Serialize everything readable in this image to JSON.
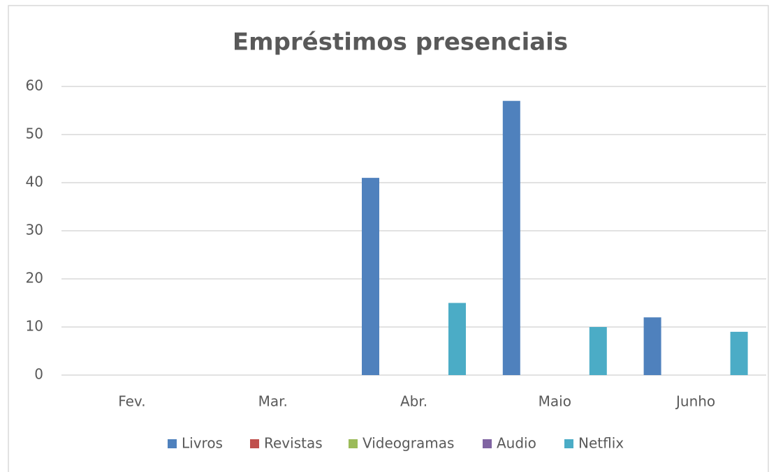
{
  "chart_data": {
    "type": "bar",
    "title": "Empréstimos presenciais",
    "categories": [
      "Fev.",
      "Mar.",
      "Abr.",
      "Maio",
      "Junho"
    ],
    "series": [
      {
        "name": "Livros",
        "color": "#4f81bd",
        "values": [
          0,
          0,
          41,
          57,
          12
        ]
      },
      {
        "name": "Revistas",
        "color": "#c0504d",
        "values": [
          0,
          0,
          0,
          0,
          0
        ]
      },
      {
        "name": "Videogramas",
        "color": "#9bbb59",
        "values": [
          0,
          0,
          0,
          0,
          0
        ]
      },
      {
        "name": "Audio",
        "color": "#8064a2",
        "values": [
          0,
          0,
          0,
          0,
          0
        ]
      },
      {
        "name": "Netflix",
        "color": "#4bacc6",
        "values": [
          0,
          0,
          15,
          10,
          9
        ]
      }
    ],
    "ylim": [
      0,
      60
    ],
    "yticks": [
      0,
      10,
      20,
      30,
      40,
      50,
      60
    ],
    "grid": true,
    "legend": "bottom"
  }
}
